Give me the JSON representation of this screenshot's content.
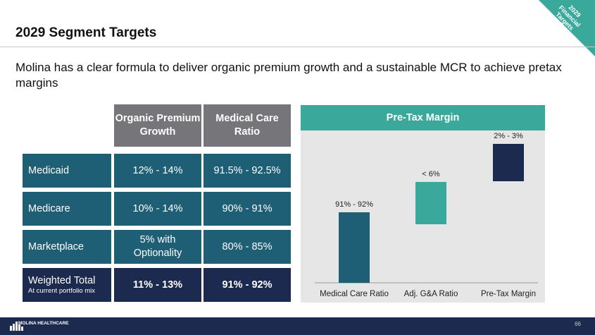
{
  "corner_tag": "2029 Financial Targets",
  "title": "2029 Segment Targets",
  "subtitle": "Molina has a clear formula to deliver organic premium growth and a sustainable MCR to achieve pretax margins",
  "table": {
    "headers": [
      "Organic Premium Growth",
      "Medical Care Ratio"
    ],
    "rows": [
      {
        "label": "Medicaid",
        "growth": "12% - 14%",
        "mcr": "91.5% - 92.5%"
      },
      {
        "label": "Medicare",
        "growth": "10% - 14%",
        "mcr": "90% - 91%"
      },
      {
        "label": "Marketplace",
        "growth": "5% with Optionality",
        "mcr": "80% - 85%"
      }
    ],
    "total": {
      "label": "Weighted Total",
      "sublabel": "At current portfolio mix",
      "growth": "11% - 13%",
      "mcr": "91% - 92%"
    }
  },
  "chart_data": {
    "type": "bar",
    "title": "Pre-Tax Margin",
    "categories": [
      "Medical Care Ratio",
      "Adj. G&A Ratio",
      "Pre-Tax Margin"
    ],
    "data_labels": [
      "91% - 92%",
      "< 6%",
      "2% - 3%"
    ],
    "colors": [
      "#1e5f76",
      "#3aa89a",
      "#1d2a4f"
    ]
  },
  "footer": {
    "logo_text": "MOLINA HEALTHCARE",
    "page_number": "66"
  },
  "colors": {
    "teal": "#3aa89a",
    "blue": "#1e5f76",
    "navy": "#1d2a4f",
    "gray_header": "#75757a"
  }
}
